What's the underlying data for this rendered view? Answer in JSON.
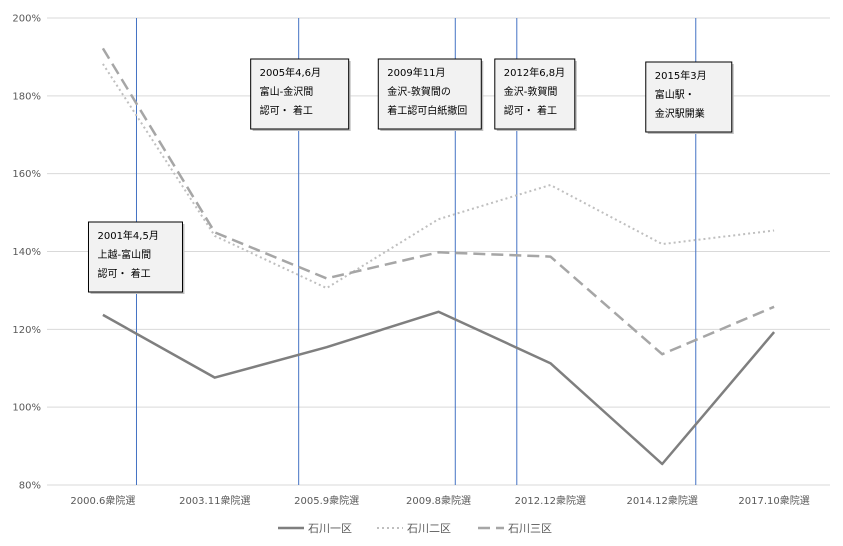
{
  "chart_data": {
    "type": "line",
    "categories": [
      "2000.6衆院選",
      "2003.11衆院選",
      "2005.9衆院選",
      "2009.8衆院選",
      "2012.12衆院選",
      "2014.12衆院選",
      "2017.10衆院選"
    ],
    "ylim": [
      80,
      200
    ],
    "yticks": [
      "80%",
      "100%",
      "120%",
      "140%",
      "160%",
      "180%",
      "200%"
    ],
    "grid": true,
    "legend_position": "bottom",
    "series": [
      {
        "name": "石川一区",
        "values": [
          123.7,
          107.6,
          115.4,
          124.5,
          111.3,
          85.4,
          119.3
        ],
        "color": "#7f7f7f",
        "dash": "solid"
      },
      {
        "name": "石川二区",
        "values": [
          188.2,
          144.0,
          130.6,
          148.3,
          157.1,
          141.9,
          145.4
        ],
        "color": "#bfbfbf",
        "dash": "dotted"
      },
      {
        "name": "石川三区",
        "values": [
          192.2,
          144.9,
          133.1,
          139.8,
          138.7,
          113.6,
          125.8
        ],
        "color": "#a6a6a6",
        "dash": "dashed"
      }
    ],
    "annotations": [
      {
        "lines": [
          "2001年4,5月",
          "上越-富山間",
          "認可・ 着工"
        ],
        "at_category": 0.3
      },
      {
        "lines": [
          "2005年4,6月",
          "富山-金沢間",
          "認可・ 着工"
        ],
        "at_category": 1.75
      },
      {
        "lines": [
          "2009年11月",
          "金沢-敦賀間の",
          "着工認可白紙撤回"
        ],
        "at_category": 3.15
      },
      {
        "lines": [
          "2012年6,8月",
          "金沢-敦賀間",
          "認可・ 着工"
        ],
        "at_category": 3.7
      },
      {
        "lines": [
          "2015年3月",
          "富山駅・",
          "金沢駅開業"
        ],
        "at_category": 5.3
      }
    ]
  }
}
